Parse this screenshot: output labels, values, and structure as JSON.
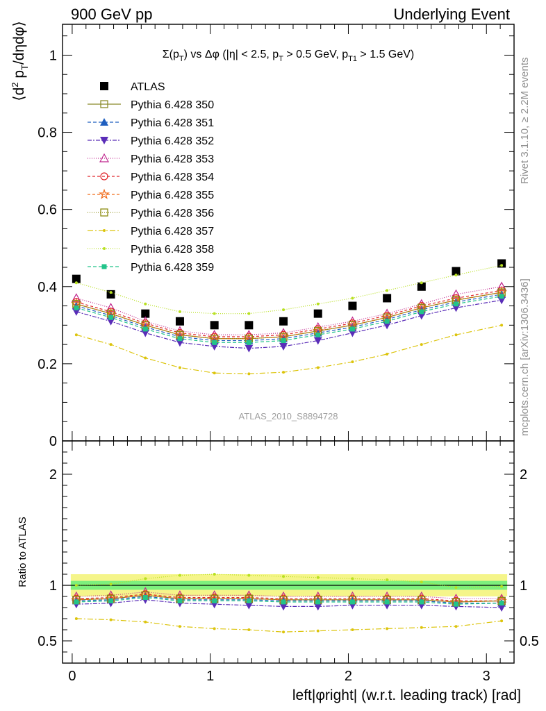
{
  "header": {
    "left": "900 GeV pp",
    "right": "Underlying Event"
  },
  "side_labels": {
    "rivet": "Rivet 3.1.10, ≥ 2.2M events",
    "mcplots": "mcplots.cern.ch [arXiv:1306.3436]"
  },
  "watermark": "ATLAS_2010_S8894728",
  "colors": {
    "ATLAS": "#000000",
    "350": "#8b8b2a",
    "351": "#1f5fbf",
    "352": "#5a2db8",
    "353": "#c0288f",
    "354": "#e0242a",
    "355": "#f06a18",
    "356": "#8c8c10",
    "357": "#dcc40c",
    "358": "#b8e020",
    "359": "#22c48a",
    "band_inner": "#7df07d",
    "band_outer": "#f5f58a"
  },
  "chart_data": [
    {
      "type": "scatter",
      "title": "Σ(p_T) vs Δφ (|η| < 2.5, p_T > 0.5 GeV, p_T1 > 1.5 GeV)",
      "ylabel": "⟨d² p_T/dηdφ⟩",
      "xlim": [
        -0.07,
        3.2
      ],
      "ylim": [
        0,
        1.08
      ],
      "yticks": [
        "0",
        "0.2",
        "0.4",
        "0.6",
        "0.8",
        "1"
      ],
      "legend_position": "top-left",
      "x": [
        0.03,
        0.28,
        0.53,
        0.78,
        1.03,
        1.28,
        1.53,
        1.78,
        2.03,
        2.28,
        2.53,
        2.78,
        3.11
      ],
      "series": [
        {
          "name": "ATLAS",
          "key": "ATLAS",
          "marker": "square-filled",
          "values": [
            0.42,
            0.38,
            0.33,
            0.31,
            0.3,
            0.3,
            0.31,
            0.33,
            0.35,
            0.37,
            0.4,
            0.44,
            0.46
          ]
        },
        {
          "name": "Pythia 6.428 350",
          "key": "350",
          "marker": "square-open",
          "dash": "",
          "values": [
            0.355,
            0.33,
            0.3,
            0.275,
            0.265,
            0.265,
            0.27,
            0.285,
            0.3,
            0.32,
            0.345,
            0.365,
            0.385
          ]
        },
        {
          "name": "Pythia 6.428 351",
          "key": "351",
          "marker": "triangle-up-filled",
          "dash": "5,3",
          "values": [
            0.35,
            0.325,
            0.295,
            0.27,
            0.26,
            0.26,
            0.265,
            0.28,
            0.295,
            0.315,
            0.34,
            0.36,
            0.38
          ]
        },
        {
          "name": "Pythia 6.428 352",
          "key": "352",
          "marker": "triangle-down-filled",
          "dash": "6,2,2,2",
          "values": [
            0.335,
            0.31,
            0.28,
            0.255,
            0.245,
            0.24,
            0.245,
            0.26,
            0.28,
            0.3,
            0.325,
            0.345,
            0.365
          ]
        },
        {
          "name": "Pythia 6.428 353",
          "key": "353",
          "marker": "triangle-up-open",
          "dash": "1,2",
          "values": [
            0.37,
            0.345,
            0.31,
            0.285,
            0.275,
            0.275,
            0.28,
            0.295,
            0.31,
            0.33,
            0.355,
            0.38,
            0.4
          ]
        },
        {
          "name": "Pythia 6.428 354",
          "key": "354",
          "marker": "circle-open",
          "dash": "4,3",
          "values": [
            0.36,
            0.335,
            0.305,
            0.28,
            0.27,
            0.27,
            0.275,
            0.29,
            0.305,
            0.325,
            0.35,
            0.37,
            0.39
          ]
        },
        {
          "name": "Pythia 6.428 355",
          "key": "355",
          "marker": "star-open",
          "dash": "4,3",
          "values": [
            0.355,
            0.33,
            0.3,
            0.275,
            0.265,
            0.265,
            0.27,
            0.285,
            0.3,
            0.32,
            0.345,
            0.365,
            0.385
          ]
        },
        {
          "name": "Pythia 6.428 356",
          "key": "356",
          "marker": "square-open",
          "dash": "1,2",
          "values": [
            0.355,
            0.33,
            0.3,
            0.275,
            0.265,
            0.265,
            0.27,
            0.285,
            0.3,
            0.32,
            0.345,
            0.365,
            0.385
          ]
        },
        {
          "name": "Pythia 6.428 357",
          "key": "357",
          "marker": "dot",
          "dash": "8,3,2,3",
          "values": [
            0.275,
            0.25,
            0.215,
            0.19,
            0.176,
            0.174,
            0.178,
            0.19,
            0.205,
            0.225,
            0.25,
            0.275,
            0.3
          ]
        },
        {
          "name": "Pythia 6.428 358",
          "key": "358",
          "marker": "dot",
          "dash": "1,2",
          "values": [
            0.41,
            0.385,
            0.355,
            0.335,
            0.33,
            0.33,
            0.34,
            0.355,
            0.37,
            0.39,
            0.41,
            0.43,
            0.455
          ]
        },
        {
          "name": "Pythia 6.428 359",
          "key": "359",
          "marker": "square-filled-small",
          "dash": "5,3",
          "values": [
            0.345,
            0.32,
            0.29,
            0.265,
            0.255,
            0.255,
            0.26,
            0.275,
            0.29,
            0.31,
            0.335,
            0.355,
            0.375
          ]
        }
      ]
    },
    {
      "type": "scatter",
      "xlabel": "left|φright| (w.r.t. leading track) [rad]",
      "ylabel": "Ratio to ATLAS",
      "xlim": [
        -0.07,
        3.2
      ],
      "ylim": [
        0.3,
        2.3
      ],
      "xticks": [
        "0",
        "1",
        "2",
        "3"
      ],
      "yticks": [
        "0.5",
        "1",
        "2"
      ],
      "band_inner": [
        0.96,
        1.04
      ],
      "band_outer": [
        0.9,
        1.1
      ],
      "x": [
        0.03,
        0.28,
        0.53,
        0.78,
        1.03,
        1.28,
        1.53,
        1.78,
        2.03,
        2.28,
        2.53,
        2.78,
        3.11
      ],
      "series": [
        {
          "key": "350",
          "values": [
            0.87,
            0.88,
            0.91,
            0.88,
            0.88,
            0.88,
            0.87,
            0.87,
            0.87,
            0.87,
            0.87,
            0.85,
            0.86
          ]
        },
        {
          "key": "351",
          "values": [
            0.86,
            0.87,
            0.9,
            0.87,
            0.87,
            0.87,
            0.86,
            0.86,
            0.86,
            0.86,
            0.86,
            0.84,
            0.84
          ]
        },
        {
          "key": "352",
          "values": [
            0.83,
            0.84,
            0.87,
            0.84,
            0.83,
            0.82,
            0.81,
            0.81,
            0.82,
            0.82,
            0.82,
            0.81,
            0.8
          ]
        },
        {
          "key": "353",
          "values": [
            0.9,
            0.91,
            0.94,
            0.91,
            0.91,
            0.91,
            0.9,
            0.9,
            0.9,
            0.9,
            0.9,
            0.88,
            0.88
          ]
        },
        {
          "key": "354",
          "values": [
            0.88,
            0.89,
            0.92,
            0.89,
            0.89,
            0.89,
            0.88,
            0.88,
            0.88,
            0.88,
            0.88,
            0.86,
            0.86
          ]
        },
        {
          "key": "355",
          "values": [
            0.87,
            0.88,
            0.91,
            0.88,
            0.88,
            0.88,
            0.87,
            0.87,
            0.87,
            0.87,
            0.87,
            0.85,
            0.86
          ]
        },
        {
          "key": "356",
          "values": [
            0.87,
            0.88,
            0.91,
            0.88,
            0.88,
            0.88,
            0.87,
            0.87,
            0.87,
            0.87,
            0.87,
            0.85,
            0.86
          ]
        },
        {
          "key": "357",
          "values": [
            0.7,
            0.69,
            0.67,
            0.63,
            0.61,
            0.6,
            0.58,
            0.59,
            0.6,
            0.61,
            0.62,
            0.63,
            0.68
          ]
        },
        {
          "key": "358",
          "values": [
            1.0,
            1.01,
            1.06,
            1.09,
            1.1,
            1.09,
            1.08,
            1.07,
            1.06,
            1.05,
            1.03,
            0.98,
            0.99
          ]
        },
        {
          "key": "359",
          "values": [
            0.85,
            0.86,
            0.89,
            0.86,
            0.86,
            0.86,
            0.85,
            0.85,
            0.85,
            0.85,
            0.85,
            0.83,
            0.84
          ]
        }
      ]
    }
  ]
}
